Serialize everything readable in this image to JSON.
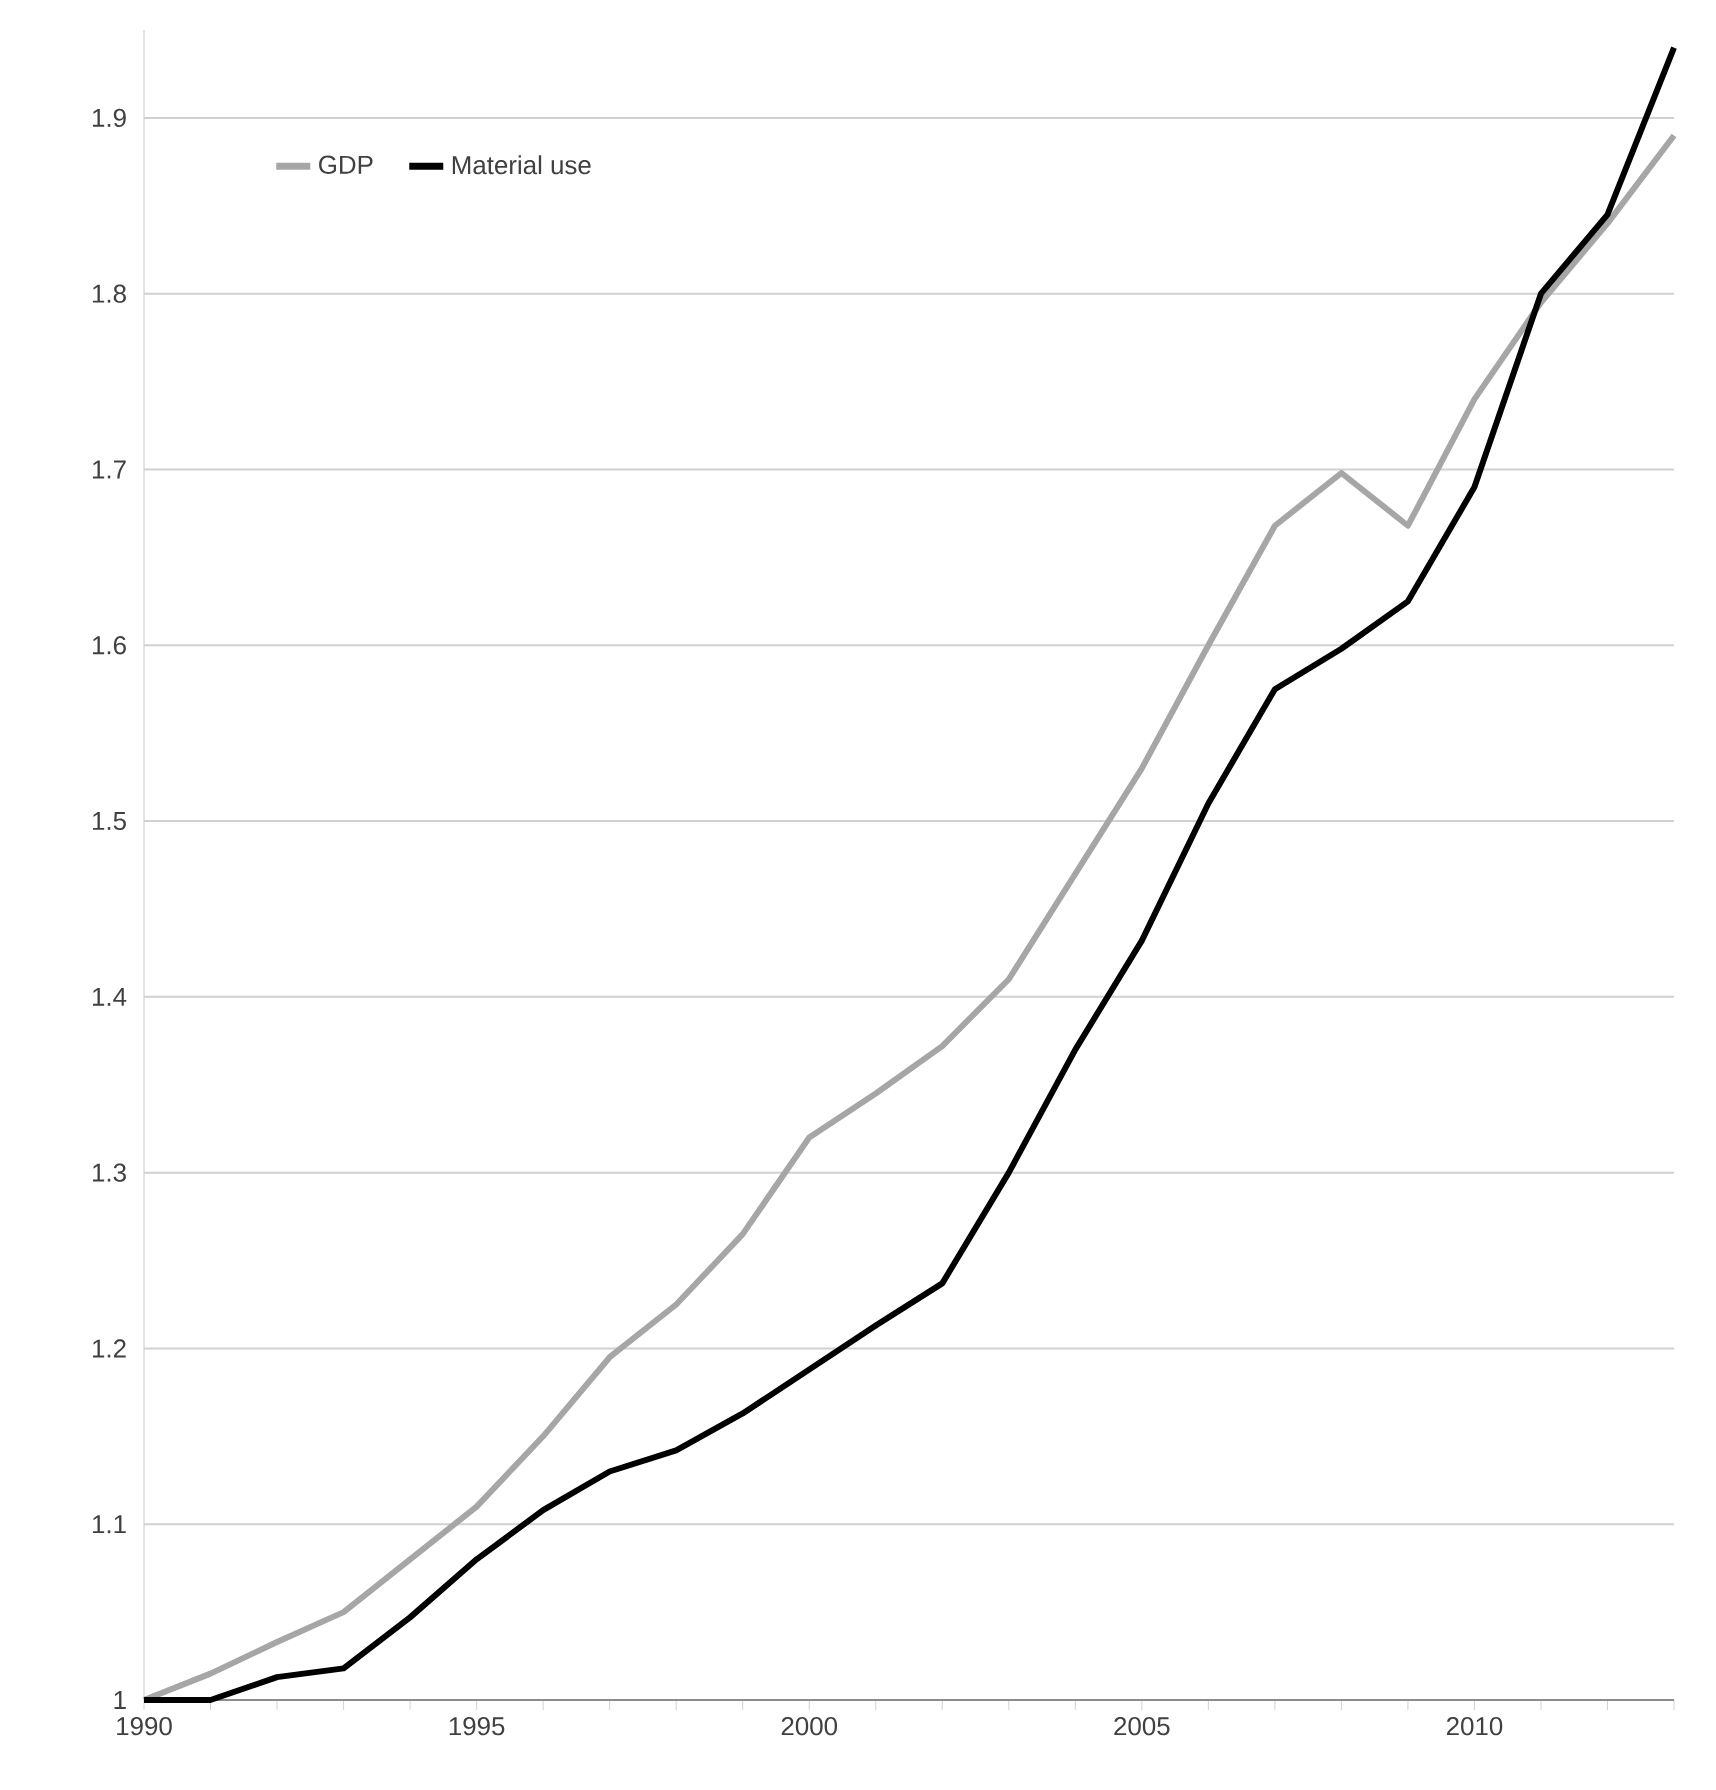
{
  "chart_data": {
    "type": "line",
    "x": [
      1990,
      1991,
      1992,
      1993,
      1994,
      1995,
      1996,
      1997,
      1998,
      1999,
      2000,
      2001,
      2002,
      2003,
      2004,
      2005,
      2006,
      2007,
      2008,
      2009,
      2010,
      2011,
      2012,
      2013
    ],
    "series": [
      {
        "name": "GDP",
        "color": "#a6a6a6",
        "values": [
          1.0,
          1.015,
          1.033,
          1.05,
          1.08,
          1.11,
          1.15,
          1.195,
          1.225,
          1.265,
          1.32,
          1.345,
          1.372,
          1.41,
          1.47,
          1.53,
          1.6,
          1.668,
          1.698,
          1.668,
          1.74,
          1.795,
          1.84,
          1.89
        ]
      },
      {
        "name": "Material use",
        "color": "#000000",
        "values": [
          1.0,
          1.0,
          1.013,
          1.018,
          1.047,
          1.08,
          1.108,
          1.13,
          1.142,
          1.163,
          1.188,
          1.213,
          1.237,
          1.3,
          1.37,
          1.432,
          1.51,
          1.575,
          1.598,
          1.625,
          1.69,
          1.8,
          1.845,
          1.94
        ]
      }
    ],
    "xlim": [
      1990,
      2013
    ],
    "ylim": [
      1,
      1.95
    ],
    "xticks": [
      1990,
      {
        "value": 1991,
        "label": null
      },
      {
        "value": 1992,
        "label": null
      },
      {
        "value": 1993,
        "label": null
      },
      {
        "value": 1994,
        "label": null
      },
      1995,
      {
        "value": 1996,
        "label": null
      },
      {
        "value": 1997,
        "label": null
      },
      {
        "value": 1998,
        "label": null
      },
      {
        "value": 1999,
        "label": null
      },
      2000,
      {
        "value": 2001,
        "label": null
      },
      {
        "value": 2002,
        "label": null
      },
      {
        "value": 2003,
        "label": null
      },
      {
        "value": 2004,
        "label": null
      },
      2005,
      {
        "value": 2006,
        "label": null
      },
      {
        "value": 2007,
        "label": null
      },
      {
        "value": 2008,
        "label": null
      },
      {
        "value": 2009,
        "label": null
      },
      2010,
      {
        "value": 2011,
        "label": null
      },
      {
        "value": 2012,
        "label": null
      },
      {
        "value": 2013,
        "label": null
      }
    ],
    "yticks": [
      {
        "value": 1,
        "label": "1"
      },
      1.1,
      1.2,
      1.3,
      1.4,
      1.5,
      1.6,
      1.7,
      1.8,
      1.9
    ],
    "grid": "y",
    "legend": "top left",
    "marker": "none",
    "line_style": "solid"
  }
}
